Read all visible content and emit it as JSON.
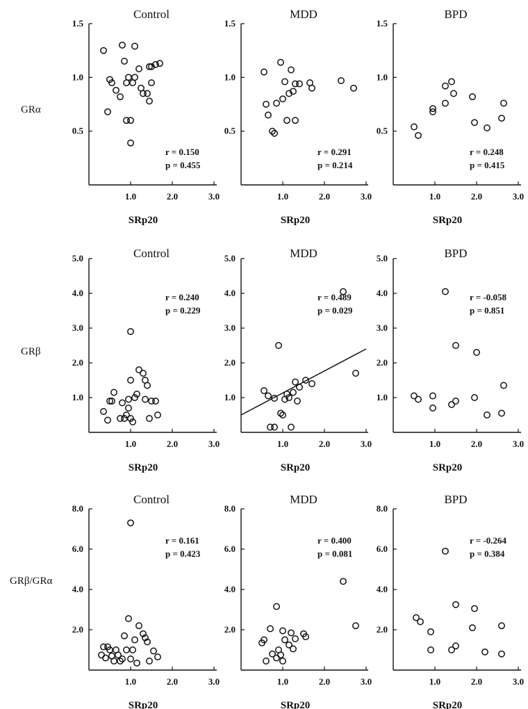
{
  "row_labels": [
    "GRα",
    "GRβ",
    "GRβ/GRα"
  ],
  "chart_data": [
    {
      "type": "scatter",
      "panel_title": "Control",
      "xlabel": "SRp20",
      "ylabel": "GRα",
      "xlim": [
        0,
        3.2
      ],
      "ylim": [
        0,
        1.5
      ],
      "xticks": [
        "1.0",
        "2.0",
        "3.0"
      ],
      "yticks": [
        "0.5",
        "1.0",
        "1.5"
      ],
      "r_text": "r = 0.150",
      "p_text": "p = 0.455",
      "points": [
        [
          0.35,
          1.25
        ],
        [
          0.45,
          0.68
        ],
        [
          0.5,
          0.98
        ],
        [
          0.55,
          0.95
        ],
        [
          0.65,
          0.88
        ],
        [
          0.75,
          0.82
        ],
        [
          0.8,
          1.3
        ],
        [
          0.85,
          1.15
        ],
        [
          0.9,
          0.95
        ],
        [
          0.95,
          1.0
        ],
        [
          0.9,
          0.6
        ],
        [
          1.0,
          0.6
        ],
        [
          1.0,
          0.39
        ],
        [
          1.05,
          0.95
        ],
        [
          1.1,
          1.0
        ],
        [
          1.1,
          1.29
        ],
        [
          1.2,
          1.08
        ],
        [
          1.25,
          0.9
        ],
        [
          1.3,
          0.85
        ],
        [
          1.4,
          0.85
        ],
        [
          1.45,
          0.78
        ],
        [
          1.45,
          1.1
        ],
        [
          1.5,
          1.1
        ],
        [
          1.5,
          0.95
        ],
        [
          1.6,
          1.12
        ],
        [
          1.7,
          1.13
        ]
      ]
    },
    {
      "type": "scatter",
      "panel_title": "MDD",
      "xlabel": "SRp20",
      "ylabel": "",
      "xlim": [
        0,
        3.2
      ],
      "ylim": [
        0,
        1.5
      ],
      "xticks": [
        "1.0",
        "2.0",
        "3.0"
      ],
      "yticks": [
        "0.5",
        "1.0",
        "1.5"
      ],
      "r_text": "r = 0.291",
      "p_text": "p = 0.214",
      "points": [
        [
          0.55,
          1.05
        ],
        [
          0.6,
          0.75
        ],
        [
          0.65,
          0.65
        ],
        [
          0.75,
          0.5
        ],
        [
          0.8,
          0.48
        ],
        [
          0.85,
          0.76
        ],
        [
          0.95,
          1.14
        ],
        [
          1.0,
          0.8
        ],
        [
          1.05,
          0.96
        ],
        [
          1.1,
          0.6
        ],
        [
          1.15,
          0.85
        ],
        [
          1.2,
          1.07
        ],
        [
          1.25,
          0.87
        ],
        [
          1.3,
          0.6
        ],
        [
          1.3,
          0.94
        ],
        [
          1.4,
          0.94
        ],
        [
          1.65,
          0.95
        ],
        [
          1.7,
          0.9
        ],
        [
          2.4,
          0.97
        ],
        [
          2.7,
          0.9
        ]
      ]
    },
    {
      "type": "scatter",
      "panel_title": "BPD",
      "xlabel": "SRp20",
      "ylabel": "",
      "xlim": [
        0,
        3.2
      ],
      "ylim": [
        0,
        1.5
      ],
      "xticks": [
        "1.0",
        "2.0",
        "3.0"
      ],
      "yticks": [
        "0.5",
        "1.0",
        "1.5"
      ],
      "r_text": "r = 0.248",
      "p_text": "p = 0.415",
      "points": [
        [
          0.5,
          0.54
        ],
        [
          0.6,
          0.46
        ],
        [
          0.95,
          0.68
        ],
        [
          0.95,
          0.71
        ],
        [
          1.25,
          0.92
        ],
        [
          1.25,
          0.76
        ],
        [
          1.4,
          0.96
        ],
        [
          1.45,
          0.85
        ],
        [
          1.9,
          0.82
        ],
        [
          1.95,
          0.58
        ],
        [
          2.25,
          0.53
        ],
        [
          2.6,
          0.62
        ],
        [
          2.65,
          0.76
        ]
      ]
    },
    {
      "type": "scatter",
      "panel_title": "Control",
      "xlabel": "SRp20",
      "ylabel": "GRβ",
      "xlim": [
        0,
        3.2
      ],
      "ylim": [
        0,
        5.0
      ],
      "xticks": [
        "1.0",
        "2.0",
        "3.0"
      ],
      "yticks": [
        "1.0",
        "2.0",
        "3.0",
        "4.0",
        "5.0"
      ],
      "r_text": "r = 0.240",
      "p_text": "p = 0.229",
      "points": [
        [
          0.35,
          0.6
        ],
        [
          0.45,
          0.35
        ],
        [
          0.5,
          0.9
        ],
        [
          0.55,
          0.9
        ],
        [
          0.6,
          1.15
        ],
        [
          0.75,
          0.4
        ],
        [
          0.8,
          0.85
        ],
        [
          0.85,
          0.4
        ],
        [
          0.9,
          0.5
        ],
        [
          0.95,
          0.95
        ],
        [
          0.95,
          0.7
        ],
        [
          1.0,
          2.9
        ],
        [
          1.0,
          1.5
        ],
        [
          1.0,
          0.4
        ],
        [
          1.05,
          0.3
        ],
        [
          1.1,
          1.0
        ],
        [
          1.15,
          1.1
        ],
        [
          1.2,
          1.8
        ],
        [
          1.3,
          1.7
        ],
        [
          1.35,
          1.5
        ],
        [
          1.35,
          0.95
        ],
        [
          1.4,
          1.35
        ],
        [
          1.45,
          0.4
        ],
        [
          1.5,
          0.9
        ],
        [
          1.6,
          0.9
        ],
        [
          1.65,
          0.5
        ]
      ]
    },
    {
      "type": "scatter",
      "panel_title": "MDD",
      "xlabel": "SRp20",
      "ylabel": "",
      "xlim": [
        0,
        3.2
      ],
      "ylim": [
        0,
        5.0
      ],
      "xticks": [
        "1.0",
        "2.0",
        "3.0"
      ],
      "yticks": [
        "1.0",
        "2.0",
        "3.0",
        "4.0",
        "5.0"
      ],
      "r_text": "r = 0.489",
      "p_text": "p = 0.029",
      "points": [
        [
          0.55,
          1.2
        ],
        [
          0.65,
          1.05
        ],
        [
          0.7,
          0.15
        ],
        [
          0.8,
          0.98
        ],
        [
          0.8,
          0.15
        ],
        [
          0.9,
          2.5
        ],
        [
          0.95,
          0.55
        ],
        [
          1.0,
          0.5
        ],
        [
          1.05,
          0.95
        ],
        [
          1.1,
          1.1
        ],
        [
          1.15,
          1.0
        ],
        [
          1.2,
          0.15
        ],
        [
          1.25,
          1.15
        ],
        [
          1.3,
          1.45
        ],
        [
          1.35,
          0.9
        ],
        [
          1.4,
          1.3
        ],
        [
          1.55,
          1.5
        ],
        [
          1.7,
          1.4
        ],
        [
          2.45,
          4.05
        ],
        [
          2.75,
          1.7
        ]
      ],
      "fit_line": {
        "x1": 0,
        "y1": 0.5,
        "x2": 3.0,
        "y2": 2.4
      }
    },
    {
      "type": "scatter",
      "panel_title": "BPD",
      "xlabel": "SRp20",
      "ylabel": "",
      "xlim": [
        0,
        3.2
      ],
      "ylim": [
        0,
        5.0
      ],
      "xticks": [
        "1.0",
        "2.0",
        "3.0"
      ],
      "yticks": [
        "1.0",
        "2.0",
        "3.0",
        "4.0",
        "5.0"
      ],
      "r_text": "r = -0.058",
      "p_text": "p = 0.851",
      "points": [
        [
          0.5,
          1.05
        ],
        [
          0.6,
          0.95
        ],
        [
          0.95,
          0.7
        ],
        [
          0.95,
          1.05
        ],
        [
          1.25,
          4.05
        ],
        [
          1.4,
          0.8
        ],
        [
          1.5,
          0.9
        ],
        [
          1.5,
          2.5
        ],
        [
          1.95,
          1.0
        ],
        [
          2.0,
          2.3
        ],
        [
          2.25,
          0.5
        ],
        [
          2.6,
          0.55
        ],
        [
          2.65,
          1.35
        ]
      ]
    },
    {
      "type": "scatter",
      "panel_title": "Control",
      "xlabel": "SRp20",
      "ylabel": "GRβ/GRα",
      "xlim": [
        0,
        3.2
      ],
      "ylim": [
        0,
        8.0
      ],
      "xticks": [
        "1.0",
        "2.0",
        "3.0"
      ],
      "yticks": [
        "2.0",
        "4.0",
        "6.0",
        "8.0"
      ],
      "r_text": "r = 0.161",
      "p_text": "p = 0.423",
      "points": [
        [
          0.3,
          0.75
        ],
        [
          0.35,
          1.15
        ],
        [
          0.4,
          0.6
        ],
        [
          0.45,
          1.15
        ],
        [
          0.5,
          1.0
        ],
        [
          0.55,
          0.7
        ],
        [
          0.6,
          0.45
        ],
        [
          0.65,
          1.0
        ],
        [
          0.7,
          0.75
        ],
        [
          0.75,
          0.45
        ],
        [
          0.8,
          0.55
        ],
        [
          0.85,
          1.7
        ],
        [
          0.9,
          1.0
        ],
        [
          0.95,
          2.55
        ],
        [
          1.0,
          7.3
        ],
        [
          1.0,
          0.55
        ],
        [
          1.05,
          1.0
        ],
        [
          1.1,
          1.5
        ],
        [
          1.15,
          0.35
        ],
        [
          1.2,
          2.2
        ],
        [
          1.3,
          1.8
        ],
        [
          1.35,
          1.6
        ],
        [
          1.4,
          1.4
        ],
        [
          1.45,
          0.45
        ],
        [
          1.55,
          0.95
        ],
        [
          1.65,
          0.65
        ]
      ]
    },
    {
      "type": "scatter",
      "panel_title": "MDD",
      "xlabel": "SRp20",
      "ylabel": "",
      "xlim": [
        0,
        3.2
      ],
      "ylim": [
        0,
        8.0
      ],
      "xticks": [
        "1.0",
        "2.0",
        "3.0"
      ],
      "yticks": [
        "2.0",
        "4.0",
        "6.0",
        "8.0"
      ],
      "r_text": "r = 0.400",
      "p_text": "p = 0.081",
      "points": [
        [
          0.5,
          1.35
        ],
        [
          0.55,
          1.5
        ],
        [
          0.6,
          0.45
        ],
        [
          0.7,
          2.05
        ],
        [
          0.75,
          0.8
        ],
        [
          0.85,
          0.6
        ],
        [
          0.85,
          3.15
        ],
        [
          0.9,
          1.0
        ],
        [
          0.95,
          0.75
        ],
        [
          1.0,
          1.95
        ],
        [
          1.0,
          0.45
        ],
        [
          1.05,
          1.5
        ],
        [
          1.15,
          1.25
        ],
        [
          1.2,
          1.85
        ],
        [
          1.25,
          1.05
        ],
        [
          1.3,
          1.55
        ],
        [
          1.5,
          1.8
        ],
        [
          1.55,
          1.65
        ],
        [
          2.45,
          4.4
        ],
        [
          2.75,
          2.2
        ]
      ]
    },
    {
      "type": "scatter",
      "panel_title": "BPD",
      "xlabel": "SRp20",
      "ylabel": "",
      "xlim": [
        0,
        3.2
      ],
      "ylim": [
        0,
        8.0
      ],
      "xticks": [
        "1.0",
        "2.0",
        "3.0"
      ],
      "yticks": [
        "2.0",
        "4.0",
        "6.0",
        "8.0"
      ],
      "r_text": "r = -0.264",
      "p_text": "p = 0.384",
      "points": [
        [
          0.55,
          2.6
        ],
        [
          0.65,
          2.4
        ],
        [
          0.9,
          1.9
        ],
        [
          0.9,
          1.0
        ],
        [
          1.25,
          5.9
        ],
        [
          1.4,
          1.0
        ],
        [
          1.5,
          3.25
        ],
        [
          1.5,
          1.2
        ],
        [
          1.9,
          2.1
        ],
        [
          1.95,
          3.05
        ],
        [
          2.2,
          0.9
        ],
        [
          2.6,
          2.2
        ],
        [
          2.6,
          0.8
        ]
      ]
    }
  ]
}
